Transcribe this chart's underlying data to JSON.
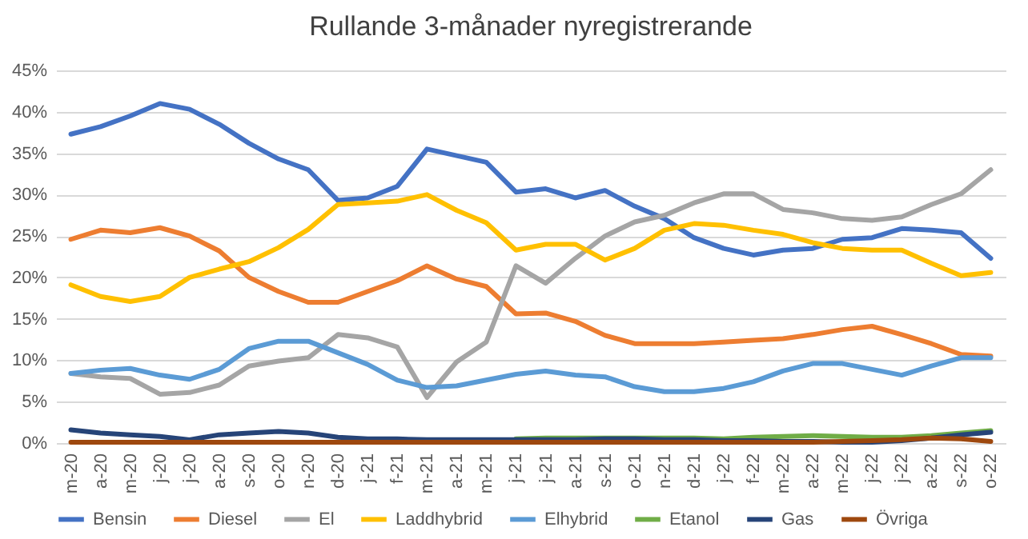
{
  "chart_data": {
    "type": "line",
    "title": "Rullande 3-månader nyregistrerande",
    "categories": [
      "m-20",
      "a-20",
      "m-20",
      "j-20",
      "j-20",
      "a-20",
      "s-20",
      "o-20",
      "n-20",
      "d-20",
      "j-21",
      "f-21",
      "m-21",
      "a-21",
      "m-21",
      "j-21",
      "j-21",
      "a-21",
      "s-21",
      "o-21",
      "n-21",
      "d-21",
      "j-22",
      "f-22",
      "m-22",
      "a-22",
      "m-22",
      "j-22",
      "j-22",
      "a-22",
      "s-22",
      "o-22"
    ],
    "series": [
      {
        "name": "Bensin",
        "color": "#4472c4",
        "values": [
          37.3,
          38.2,
          39.5,
          41,
          40.3,
          38.5,
          36.2,
          34.3,
          33,
          29.3,
          29.6,
          31,
          35.5,
          34.7,
          33.9,
          30.3,
          30.7,
          29.6,
          30.5,
          28.6,
          27.1,
          24.8,
          23.5,
          22.7,
          23.3,
          23.5,
          24.6,
          24.8,
          25.9,
          25.7,
          25.4,
          22.3
        ]
      },
      {
        "name": "Diesel",
        "color": "#ed7d31",
        "values": [
          24.6,
          25.7,
          25.4,
          26,
          25,
          23.2,
          20,
          18.3,
          17,
          17,
          18.3,
          19.6,
          21.4,
          19.8,
          18.9,
          15.6,
          15.7,
          14.7,
          13,
          12,
          12,
          12,
          12.2,
          12.4,
          12.6,
          13.1,
          13.7,
          14.1,
          13.1,
          12,
          10.7,
          10.5
        ]
      },
      {
        "name": "El",
        "color": "#a5a5a5",
        "values": [
          8.4,
          8,
          7.8,
          5.9,
          6.1,
          7,
          9.3,
          9.9,
          10.3,
          13.1,
          12.7,
          11.6,
          5.5,
          9.8,
          12.2,
          21.4,
          19.3,
          22.3,
          25,
          26.7,
          27.5,
          29,
          30.1,
          30.1,
          28.2,
          27.8,
          27.1,
          26.9,
          27.3,
          28.8,
          30.1,
          33
        ]
      },
      {
        "name": "Laddhybrid",
        "color": "#ffc000",
        "values": [
          19.1,
          17.7,
          17.1,
          17.7,
          20,
          21,
          21.9,
          23.6,
          25.8,
          28.8,
          29,
          29.2,
          30,
          28.1,
          26.6,
          23.3,
          24,
          24,
          22.1,
          23.5,
          25.7,
          26.5,
          26.3,
          25.7,
          25.2,
          24.2,
          23.5,
          23.3,
          23.3,
          21.7,
          20.2,
          20.6
        ]
      },
      {
        "name": "Elhybrid",
        "color": "#5b9bd5",
        "values": [
          8.4,
          8.8,
          9,
          8.2,
          7.7,
          8.9,
          11.4,
          12.3,
          12.3,
          10.9,
          9.5,
          7.6,
          6.7,
          6.9,
          7.6,
          8.3,
          8.7,
          8.2,
          8,
          6.8,
          6.2,
          6.2,
          6.6,
          7.4,
          8.7,
          9.6,
          9.6,
          8.9,
          8.2,
          9.3,
          10.3,
          10.3
        ]
      },
      {
        "name": "Etanol",
        "color": "#70ad47",
        "values": [
          null,
          null,
          null,
          null,
          null,
          null,
          null,
          null,
          null,
          null,
          null,
          null,
          null,
          null,
          null,
          0.5,
          0.6,
          0.6,
          0.6,
          0.6,
          0.6,
          0.6,
          0.5,
          0.7,
          0.8,
          0.9,
          0.8,
          0.7,
          0.7,
          0.9,
          1.2,
          1.5
        ]
      },
      {
        "name": "Gas",
        "color": "#264478",
        "values": [
          1.6,
          1.2,
          1,
          0.8,
          0.4,
          1,
          1.2,
          1.4,
          1.2,
          0.7,
          0.5,
          0.5,
          0.4,
          0.4,
          0.4,
          0.4,
          0.4,
          0.4,
          0.5,
          0.5,
          0.4,
          0.4,
          0.3,
          0.3,
          0.2,
          0.2,
          0.1,
          0.1,
          0.3,
          0.6,
          1,
          1.3
        ]
      },
      {
        "name": "Övriga",
        "color": "#9e480e",
        "values": [
          0.1,
          0.1,
          0.1,
          0.1,
          0.1,
          0.1,
          0.1,
          0.1,
          0.1,
          0.1,
          0.1,
          0.1,
          0.1,
          0.1,
          0.1,
          0.1,
          0.1,
          0.1,
          0.1,
          0.1,
          0.1,
          0.1,
          0.1,
          0.1,
          0.1,
          0.1,
          0.2,
          0.3,
          0.4,
          0.6,
          0.5,
          0.2
        ]
      }
    ],
    "ylim": [
      0,
      45
    ],
    "yticks": [
      {
        "value": 0,
        "label": "0%"
      },
      {
        "value": 5,
        "label": "5%"
      },
      {
        "value": 10,
        "label": "10%"
      },
      {
        "value": 15,
        "label": "15%"
      },
      {
        "value": 20,
        "label": "20%"
      },
      {
        "value": 25,
        "label": "25%"
      },
      {
        "value": 30,
        "label": "30%"
      },
      {
        "value": 35,
        "label": "35%"
      },
      {
        "value": 40,
        "label": "40%"
      },
      {
        "value": 45,
        "label": "45%"
      }
    ],
    "grid": "y",
    "legend": "bottom",
    "marker": "none",
    "line_style": "solid"
  }
}
